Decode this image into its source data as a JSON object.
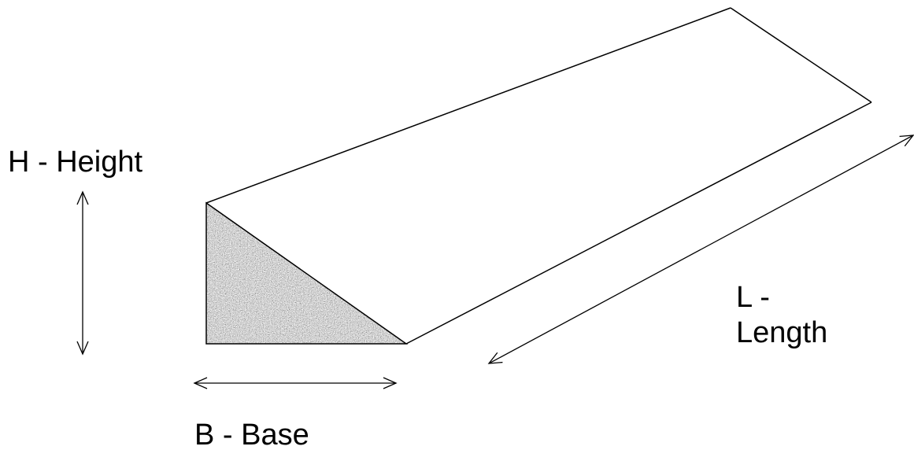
{
  "labels": {
    "height": "H - Height",
    "base": "B - Base",
    "length": [
      "L -",
      "Length"
    ]
  }
}
